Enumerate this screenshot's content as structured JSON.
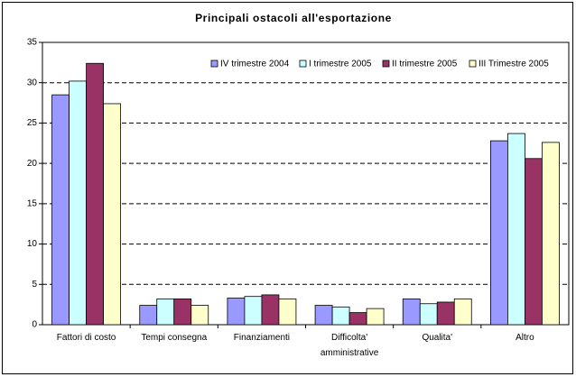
{
  "chart_data": {
    "type": "bar",
    "title": "Principali ostacoli all'esportazione",
    "categories": [
      "Fattori di costo",
      "Tempi consegna",
      "Finanziamenti",
      "Difficolta' amministrative",
      "Qualita'",
      "Altro"
    ],
    "series": [
      {
        "name": "IV trimestre 2004",
        "color": "#9999ff",
        "values": [
          28.5,
          2.4,
          3.3,
          2.4,
          3.2,
          22.8
        ]
      },
      {
        "name": "I trimestre 2005",
        "color": "#ccffff",
        "values": [
          30.2,
          3.2,
          3.5,
          2.2,
          2.6,
          23.7
        ]
      },
      {
        "name": "II trimestre 2005",
        "color": "#993366",
        "values": [
          32.4,
          3.2,
          3.7,
          1.5,
          2.8,
          20.6
        ]
      },
      {
        "name": "III Trimestre 2005",
        "color": "#ffffcc",
        "values": [
          27.4,
          2.4,
          3.2,
          2.0,
          3.2,
          22.6
        ]
      }
    ],
    "ylim": [
      0,
      35
    ],
    "yticks": [
      0,
      5,
      10,
      15,
      20,
      25,
      30,
      35
    ],
    "grid": true,
    "legend": "top-right"
  }
}
